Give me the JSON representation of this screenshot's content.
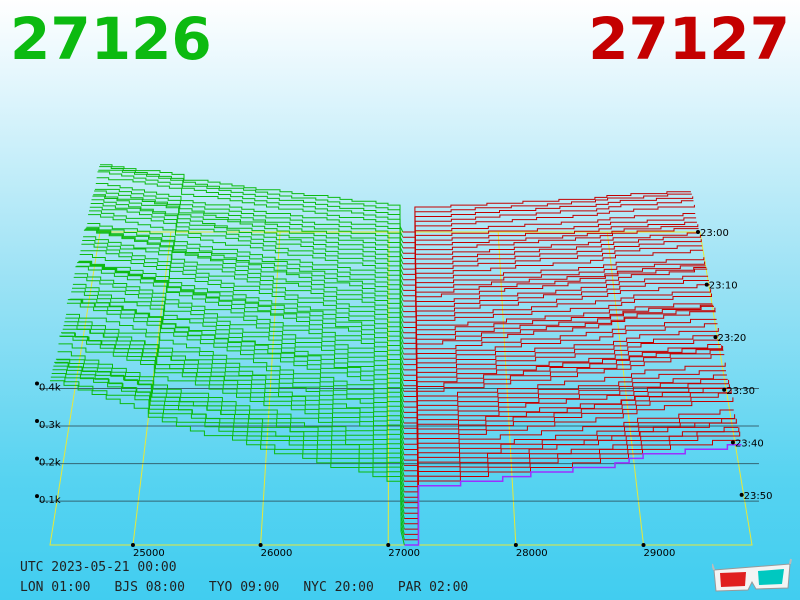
{
  "header": {
    "bid": "27126",
    "ask": "27127"
  },
  "footer": {
    "timestamp": "UTC 2023-05-21 00:00",
    "zones": [
      "LON 01:00",
      "BJS 08:00",
      "TYO 09:00",
      "NYC 20:00",
      "PAR 02:00"
    ]
  },
  "colors": {
    "bid": "#0cba10",
    "ask": "#c40000",
    "grid": "#e8e838",
    "latest_ask": "#9b30ff"
  },
  "chart_data": {
    "type": "area",
    "subtype": "3d-depth-chart-history",
    "price_ticks": [
      "25000",
      "26000",
      "27000",
      "28000",
      "29000"
    ],
    "volume_ticks": [
      "0.1k",
      "0.2k",
      "0.3k",
      "0.4k"
    ],
    "time_ticks": [
      "23:00",
      "23:10",
      "23:20",
      "23:30",
      "23:40",
      "23:50"
    ],
    "price_range": [
      24350,
      29850
    ],
    "mid_price": 27126.5,
    "series": [
      {
        "name": "27126",
        "side": "bid",
        "x": [
          24350,
          25000,
          25100,
          26000,
          27000,
          27126
        ],
        "cumulative_volume": [
          420,
          360,
          330,
          250,
          170,
          0
        ]
      },
      {
        "name": "27127",
        "side": "ask",
        "x": [
          27127,
          27200,
          28000,
          28800,
          29000,
          29850
        ],
        "cumulative_volume": [
          0,
          150,
          180,
          210,
          230,
          260
        ]
      }
    ],
    "snapshots": 60
  }
}
